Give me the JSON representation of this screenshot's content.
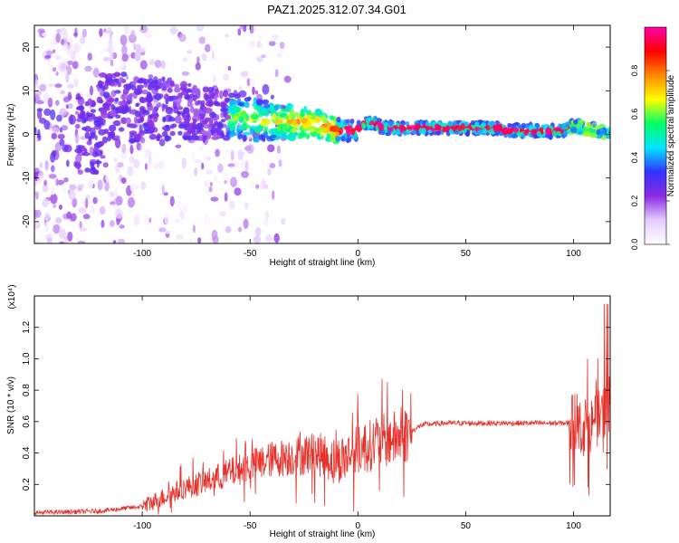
{
  "figure": {
    "title": "PAZ1.2025.312.07.34.G01"
  },
  "colors": {
    "snr_line": "#e8302a",
    "axis": "#000000",
    "background": "#ffffff"
  },
  "chart_data": [
    {
      "type": "heatmap",
      "name": "spectrogram",
      "xlabel": "Height of straight line (km)",
      "ylabel": "Frequency (Hz)",
      "xlim": [
        -150,
        117
      ],
      "ylim": [
        -25,
        25
      ],
      "xticks": [
        -100,
        -50,
        0,
        50,
        100
      ],
      "yticks": [
        -20,
        -10,
        0,
        10,
        20
      ],
      "colorbar": {
        "label": "Normalized spectral amplitude",
        "range": [
          0.0,
          1.0
        ],
        "ticks": [
          "0.0",
          "0.2",
          "0.4",
          "0.6",
          "0.8"
        ],
        "tick_values": [
          0.0,
          0.2,
          0.4,
          0.6,
          0.8
        ],
        "colormap": [
          "#ffffff",
          "#e6ccff",
          "#8a2be2",
          "#3333ff",
          "#00e5ff",
          "#00ff66",
          "#ffff00",
          "#ff8800",
          "#ff0000",
          "#ff00aa"
        ]
      },
      "ridge_frequency_hz": [
        {
          "x": -120,
          "y": 6
        },
        {
          "x": -90,
          "y": 6
        },
        {
          "x": -60,
          "y": 4
        },
        {
          "x": -40,
          "y": 3
        },
        {
          "x": -20,
          "y": 2.5
        },
        {
          "x": -10,
          "y": 1
        },
        {
          "x": 0,
          "y": 1
        },
        {
          "x": 2,
          "y": 2.5
        },
        {
          "x": 8,
          "y": 2.5
        },
        {
          "x": 12,
          "y": 1.5
        },
        {
          "x": 20,
          "y": 1.5
        },
        {
          "x": 65,
          "y": 1.5
        },
        {
          "x": 70,
          "y": 0.8
        },
        {
          "x": 95,
          "y": 0.8
        },
        {
          "x": 100,
          "y": 2
        },
        {
          "x": 110,
          "y": 1
        },
        {
          "x": 117,
          "y": 0
        }
      ]
    },
    {
      "type": "line",
      "name": "snr",
      "xlabel": "Height of straight line (km)",
      "ylabel": "SNR (10 * v/v)",
      "y_exponent_label": "(x10⁴)",
      "xlim": [
        -150,
        117
      ],
      "ylim": [
        0,
        1.4
      ],
      "xticks": [
        -100,
        -50,
        0,
        50,
        100
      ],
      "yticks": [
        0.2,
        0.4,
        0.6,
        0.8,
        1.0,
        1.2
      ],
      "ytick_labels": [
        "0.2",
        "0.4",
        "0.6",
        "0.8",
        "1.0",
        "1.2"
      ],
      "series": [
        {
          "name": "SNR",
          "envelope": [
            {
              "x": -150,
              "y": 0.02
            },
            {
              "x": -120,
              "y": 0.03
            },
            {
              "x": -100,
              "y": 0.06
            },
            {
              "x": -90,
              "y": 0.12
            },
            {
              "x": -80,
              "y": 0.18
            },
            {
              "x": -70,
              "y": 0.22
            },
            {
              "x": -60,
              "y": 0.27
            },
            {
              "x": -50,
              "y": 0.32
            },
            {
              "x": -40,
              "y": 0.36
            },
            {
              "x": -30,
              "y": 0.38
            },
            {
              "x": -20,
              "y": 0.4
            },
            {
              "x": -10,
              "y": 0.35
            },
            {
              "x": 0,
              "y": 0.42
            },
            {
              "x": 10,
              "y": 0.47
            },
            {
              "x": 20,
              "y": 0.5
            },
            {
              "x": 30,
              "y": 0.58
            },
            {
              "x": 40,
              "y": 0.59
            },
            {
              "x": 60,
              "y": 0.59
            },
            {
              "x": 80,
              "y": 0.59
            },
            {
              "x": 97,
              "y": 0.59
            },
            {
              "x": 100,
              "y": 0.6
            },
            {
              "x": 105,
              "y": 0.55
            },
            {
              "x": 110,
              "y": 0.6
            },
            {
              "x": 117,
              "y": 0.7
            }
          ]
        }
      ]
    }
  ]
}
